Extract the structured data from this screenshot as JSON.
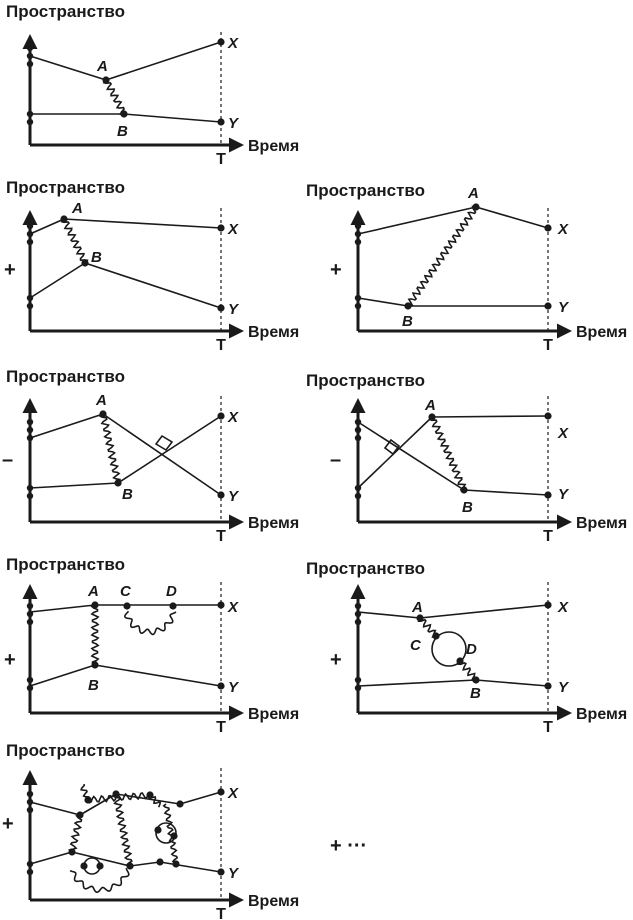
{
  "axis": {
    "space_label": "Пространство",
    "time_label": "Время",
    "t_label": "T"
  },
  "points": {
    "A": "A",
    "B": "B",
    "C": "C",
    "D": "D",
    "X": "X",
    "Y": "Y"
  },
  "signs": {
    "plus": "+",
    "minus": "–",
    "ellipsis": "+ ···"
  }
}
